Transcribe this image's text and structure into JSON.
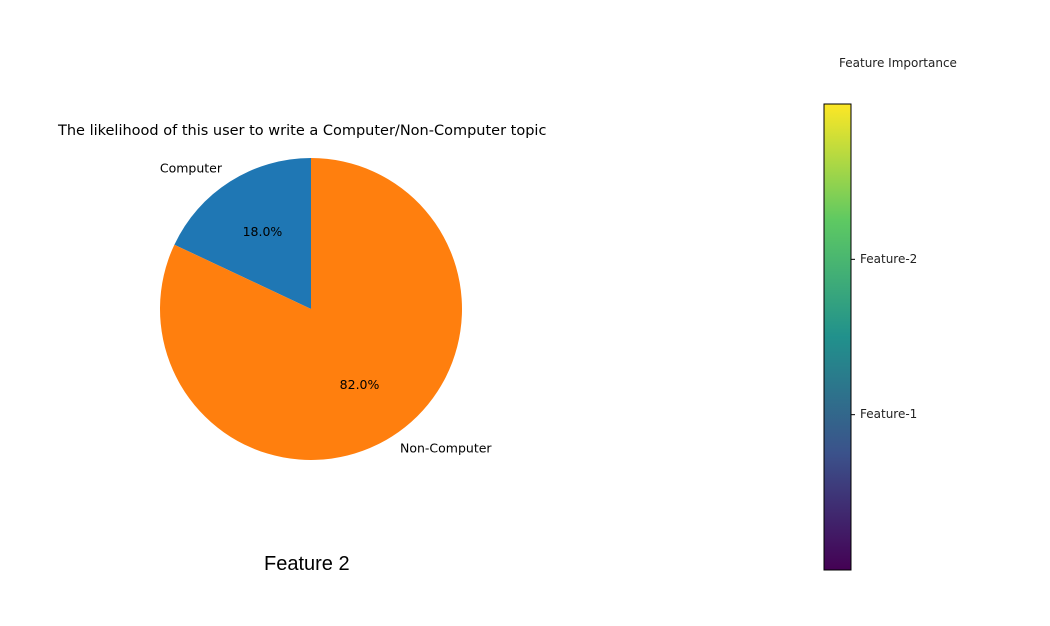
{
  "chart_data": [
    {
      "type": "pie",
      "title": "The likelihood of this user to write a Computer/Non-Computer topic",
      "slices": [
        {
          "label": "Computer",
          "value": 18.0,
          "pct_label": "18.0%",
          "color": "#1f77b4"
        },
        {
          "label": "Non-Computer",
          "value": 82.0,
          "pct_label": "82.0%",
          "color": "#ff7f0e"
        }
      ],
      "start_angle_deg": 90,
      "direction": "counterclockwise"
    },
    {
      "type": "heatmap",
      "title": "Feature Importance",
      "colormap": "viridis",
      "colormap_stops": [
        "#440154",
        "#3b528b",
        "#21918c",
        "#5ec962",
        "#fde725"
      ],
      "ticks": [
        {
          "label": "Feature-1",
          "value": 1
        },
        {
          "label": "Feature-2",
          "value": 2
        }
      ],
      "range": [
        0,
        3
      ]
    }
  ],
  "caption": "Feature 2"
}
